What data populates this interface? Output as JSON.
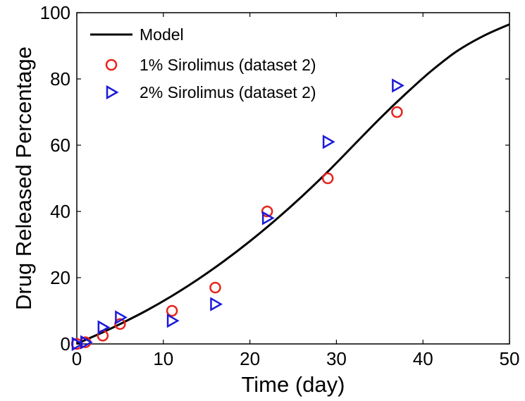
{
  "chart_data": {
    "type": "scatter",
    "xlabel": "Time (day)",
    "ylabel": "Drug Released Percentage",
    "xlim": [
      0,
      50
    ],
    "ylim": [
      0,
      100
    ],
    "xticks": [
      "0",
      "10",
      "20",
      "30",
      "40",
      "50"
    ],
    "yticks": [
      "0",
      "20",
      "40",
      "60",
      "80",
      "100"
    ],
    "grid": false,
    "legend_position": "top-left",
    "series": [
      {
        "name": "Model",
        "kind": "line",
        "color": "#000000",
        "x": [
          0,
          1,
          3,
          5,
          8,
          11,
          14,
          17,
          20,
          23,
          26,
          29,
          32,
          35,
          38,
          41,
          44,
          47,
          50
        ],
        "y": [
          0,
          1.2,
          3.5,
          6.0,
          10.0,
          14.5,
          19.5,
          25.0,
          31.0,
          37.5,
          44.5,
          52.0,
          60.0,
          68.0,
          75.5,
          82.5,
          88.5,
          93.0,
          96.5
        ]
      },
      {
        "name": "1% Sirolimus (dataset 2)",
        "kind": "marker",
        "marker": "circle-icon",
        "color": "#e8231c",
        "x": [
          0,
          1,
          3,
          5,
          11,
          16,
          22,
          29,
          37
        ],
        "y": [
          0,
          0.5,
          2.5,
          6,
          10,
          17,
          40,
          50,
          70
        ]
      },
      {
        "name": "2% Sirolimus (dataset 2)",
        "kind": "marker",
        "marker": "triangle-right-icon",
        "color": "#1a1adb",
        "x": [
          0,
          1,
          3,
          5,
          11,
          16,
          22,
          29,
          37
        ],
        "y": [
          0,
          0.5,
          5,
          8,
          7,
          12,
          38,
          61,
          78
        ]
      }
    ]
  }
}
